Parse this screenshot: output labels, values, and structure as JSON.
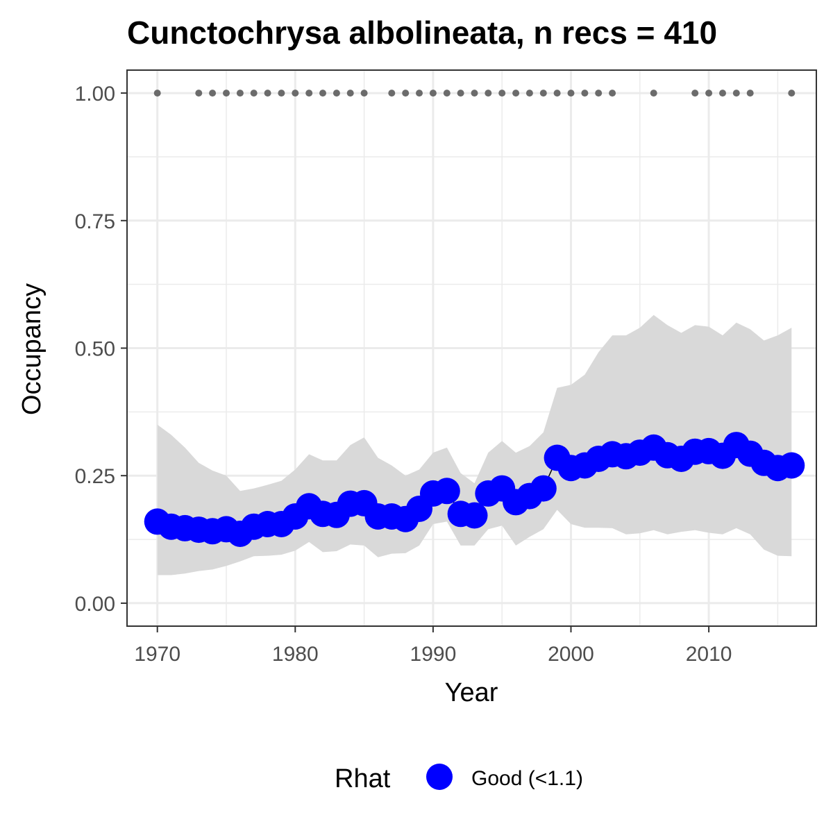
{
  "chart_data": {
    "type": "line",
    "title": "Cunctochrysa albolineata, n recs = 410",
    "xlabel": "Year",
    "ylabel": "Occupancy",
    "xlim": [
      1967.8,
      2017.8
    ],
    "ylim": [
      -0.045,
      1.045
    ],
    "x_ticks": [
      1970,
      1980,
      1990,
      2000,
      2010
    ],
    "x_tick_labels": [
      "1970",
      "1980",
      "1990",
      "2000",
      "2010"
    ],
    "y_ticks": [
      0,
      0.25,
      0.5,
      0.75,
      1.0
    ],
    "y_tick_labels": [
      "0.00",
      "0.25",
      "0.50",
      "0.75",
      "1.00"
    ],
    "grid": true,
    "legend": {
      "title": "Rhat",
      "position": "bottom",
      "entries": [
        {
          "label": "Good (<1.1)",
          "color": "#0000ff"
        }
      ]
    },
    "colors": {
      "series": "#0000ff",
      "ribbon": "#d9d9d9",
      "records": "#6b6b6b",
      "grid": "#ebebeb",
      "panel_border": "#333333"
    },
    "series": [
      {
        "x": [
          1970,
          1971,
          1972,
          1973,
          1974,
          1975,
          1976,
          1977,
          1978,
          1979,
          1980,
          1981,
          1982,
          1983,
          1984,
          1985,
          1986,
          1987,
          1988,
          1989,
          1990,
          1991,
          1992,
          1993,
          1994,
          1995,
          1996,
          1997,
          1998,
          1999,
          2000,
          2001,
          2002,
          2003,
          2004,
          2005,
          2006,
          2007,
          2008,
          2009,
          2010,
          2011,
          2012,
          2013,
          2014,
          2015,
          2016
        ],
        "y": [
          0.16,
          0.15,
          0.147,
          0.144,
          0.141,
          0.145,
          0.136,
          0.15,
          0.155,
          0.155,
          0.17,
          0.19,
          0.175,
          0.173,
          0.195,
          0.196,
          0.17,
          0.17,
          0.165,
          0.185,
          0.215,
          0.22,
          0.175,
          0.172,
          0.215,
          0.225,
          0.198,
          0.21,
          0.225,
          0.285,
          0.265,
          0.27,
          0.283,
          0.292,
          0.288,
          0.295,
          0.305,
          0.29,
          0.283,
          0.297,
          0.298,
          0.289,
          0.31,
          0.293,
          0.275,
          0.265,
          0.27
        ],
        "lower": [
          0.055,
          0.055,
          0.058,
          0.063,
          0.066,
          0.073,
          0.082,
          0.092,
          0.093,
          0.095,
          0.103,
          0.12,
          0.1,
          0.102,
          0.115,
          0.113,
          0.09,
          0.097,
          0.098,
          0.113,
          0.155,
          0.16,
          0.113,
          0.113,
          0.145,
          0.152,
          0.113,
          0.13,
          0.145,
          0.183,
          0.155,
          0.148,
          0.148,
          0.147,
          0.135,
          0.137,
          0.143,
          0.135,
          0.14,
          0.143,
          0.138,
          0.135,
          0.147,
          0.135,
          0.105,
          0.093,
          0.092
        ],
        "upper": [
          0.35,
          0.33,
          0.305,
          0.275,
          0.26,
          0.25,
          0.22,
          0.225,
          0.232,
          0.24,
          0.262,
          0.292,
          0.28,
          0.28,
          0.31,
          0.325,
          0.285,
          0.27,
          0.25,
          0.262,
          0.295,
          0.305,
          0.255,
          0.235,
          0.295,
          0.318,
          0.295,
          0.308,
          0.335,
          0.422,
          0.428,
          0.448,
          0.492,
          0.525,
          0.525,
          0.54,
          0.565,
          0.545,
          0.53,
          0.545,
          0.542,
          0.525,
          0.55,
          0.537,
          0.515,
          0.525,
          0.54
        ]
      }
    ],
    "records": {
      "x": [
        1970,
        1973,
        1974,
        1975,
        1976,
        1977,
        1978,
        1979,
        1980,
        1981,
        1982,
        1983,
        1984,
        1985,
        1987,
        1988,
        1989,
        1990,
        1991,
        1992,
        1993,
        1994,
        1995,
        1996,
        1997,
        1998,
        1999,
        2000,
        2001,
        2002,
        2003,
        2006,
        2009,
        2010,
        2011,
        2012,
        2013,
        2016
      ],
      "y": 1.0
    }
  }
}
